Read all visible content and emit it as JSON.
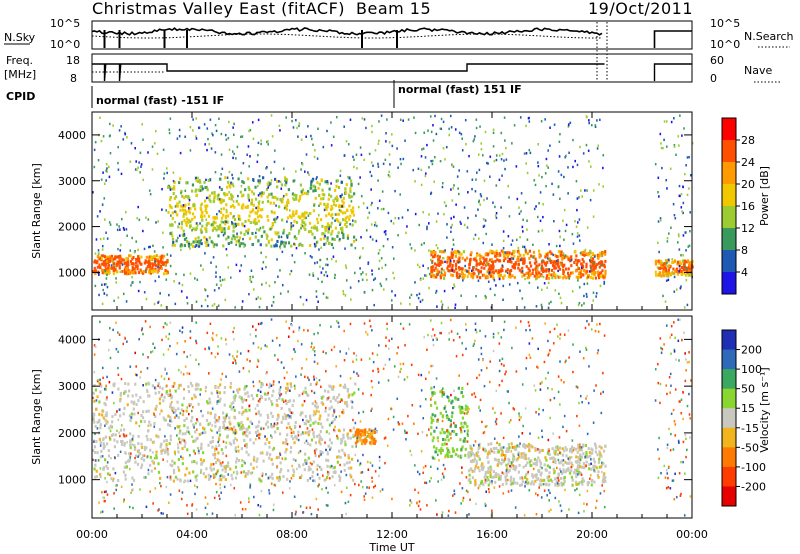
{
  "header": {
    "station": "Christmas Valley East (fitACF)",
    "beam": "Beam 15",
    "date": "19/Oct/2011"
  },
  "noise_panel": {
    "left_label": "N.Sky",
    "left_ticks": [
      "10^5",
      "10^0"
    ],
    "right_label": "N.Search",
    "right_ticks": [
      "10^5",
      "10^0"
    ]
  },
  "freq_panel": {
    "left_label_line1": "Freq.",
    "left_label_line2": "[MHz]",
    "left_ticks": [
      "18",
      "8"
    ],
    "right_label": "Nave",
    "right_ticks": [
      "60",
      "0"
    ]
  },
  "cpid": {
    "label": "CPID",
    "segments": [
      {
        "text": "normal (fast) -151 IF",
        "start_hour": 0
      },
      {
        "text": "normal (fast) 151 IF",
        "start_hour": 12
      }
    ]
  },
  "x_axis": {
    "label": "Time UT",
    "ticks": [
      "00:00",
      "04:00",
      "08:00",
      "12:00",
      "16:00",
      "20:00",
      "00:00"
    ],
    "tick_hours": [
      0,
      4,
      8,
      12,
      16,
      20,
      24
    ]
  },
  "chart_data": [
    {
      "type": "heatmap",
      "quantity": "Power",
      "ylabel": "Slant Range [km]",
      "yticks": [
        1000,
        2000,
        3000,
        4000
      ],
      "ylim": [
        180,
        4500
      ],
      "xlim_hours": [
        0,
        24
      ],
      "data_gaps_hours": [
        [
          20.5,
          22.5
        ]
      ],
      "colorbar": {
        "label": "Power [dB]",
        "ticks": [
          "28",
          "24",
          "20",
          "16",
          "12",
          "8",
          "4"
        ],
        "colors": [
          "#ff0000",
          "#ff4f00",
          "#ff9a00",
          "#f0c800",
          "#9ccc32",
          "#3a9a5e",
          "#1e5ab4",
          "#1e14e6"
        ]
      },
      "features": [
        {
          "hours": [
            0,
            3
          ],
          "range_km": [
            1000,
            1400
          ],
          "level_db": 28
        },
        {
          "hours": [
            3,
            10.5
          ],
          "range_km": [
            1600,
            3100
          ],
          "level_db": 18
        },
        {
          "hours": [
            13.5,
            20.5
          ],
          "range_km": [
            900,
            1500
          ],
          "level_db": 28
        },
        {
          "hours": [
            22.5,
            24
          ],
          "range_km": [
            950,
            1300
          ],
          "level_db": 26
        }
      ]
    },
    {
      "type": "heatmap",
      "quantity": "Velocity",
      "ylabel": "Slant Range [km]",
      "yticks": [
        1000,
        2000,
        3000,
        4000
      ],
      "ylim": [
        180,
        4500
      ],
      "xlim_hours": [
        0,
        24
      ],
      "data_gaps_hours": [
        [
          20.5,
          22.5
        ]
      ],
      "colorbar": {
        "label": "Velocity [m s⁻¹]",
        "ticks": [
          "200",
          "100",
          "50",
          "15",
          "-15",
          "-50",
          "-100",
          "-200"
        ],
        "colors": [
          "#1e2fb4",
          "#2e6ab9",
          "#3aa85e",
          "#8ad630",
          "#c8c8c0",
          "#f0b41e",
          "#ff7a00",
          "#ff3c00",
          "#e60000"
        ]
      },
      "features": [
        {
          "hours": [
            0,
            10.5
          ],
          "range_km": [
            1000,
            3100
          ],
          "velocity": 0
        },
        {
          "hours": [
            10.5,
            11.3
          ],
          "range_km": [
            1800,
            2100
          ],
          "velocity": -60
        },
        {
          "hours": [
            13.5,
            15
          ],
          "range_km": [
            1500,
            3000
          ],
          "velocity": 40
        },
        {
          "hours": [
            15,
            20.5
          ],
          "range_km": [
            900,
            1800
          ],
          "velocity": 0
        }
      ]
    }
  ]
}
